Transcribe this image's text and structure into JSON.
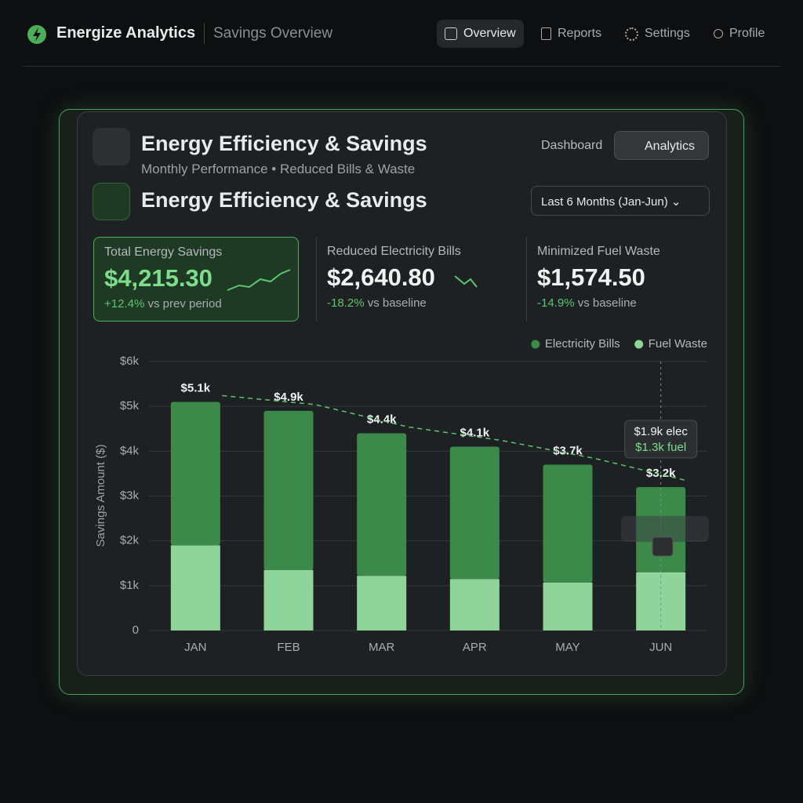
{
  "header": {
    "brand": "Energize Analytics",
    "section": "Savings Overview",
    "nav": [
      "Overview",
      "Reports",
      "Settings",
      "Profile"
    ]
  },
  "panel": {
    "title": "Energy Efficiency & Savings",
    "subtitle": "Monthly Performance • Reduced Bills & Waste",
    "tabs": [
      "Dashboard",
      "Analytics"
    ],
    "title2": "Energy Efficiency & Savings",
    "range": "Last 6 Months (Jan-Jun)"
  },
  "kpis": [
    {
      "label": "Total Energy Savings",
      "value": "$4,215.30",
      "delta": "+12.4%",
      "note": "vs prev period"
    },
    {
      "label": "Reduced Electricity Bills",
      "value": "$2,640.80",
      "delta": "-18.2%",
      "note": "vs baseline"
    },
    {
      "label": "Minimized Fuel Waste",
      "value": "$1,574.50",
      "delta": "-14.9%",
      "note": "vs baseline"
    }
  ],
  "chart_data": {
    "type": "bar",
    "stacked": true,
    "y_label": "Savings Amount ($)",
    "categories": [
      "JAN",
      "FEB",
      "MAR",
      "APR",
      "MAY",
      "JUN"
    ],
    "series": [
      {
        "name": "Electricity Bills",
        "color": "#3b8a4a",
        "values": [
          3200,
          3550,
          3180,
          2950,
          2630,
          1900
        ]
      },
      {
        "name": "Fuel Waste",
        "color": "#8fd49a",
        "values": [
          1900,
          1350,
          1220,
          1150,
          1070,
          1300
        ]
      }
    ],
    "totals": {
      "values": [
        5100,
        4900,
        4400,
        4100,
        3700,
        3200
      ],
      "value_labels": [
        "$5.1k",
        "$4.9k",
        "$4.4k",
        "$4.1k",
        "$3.7k",
        "$3.2k"
      ]
    },
    "ylim": [
      0,
      6000
    ],
    "yticks": [
      0,
      {
        "value": 1000,
        "label": "$1k"
      },
      {
        "value": 2000,
        "label": "$2k"
      },
      {
        "value": 3000,
        "label": "$3k"
      },
      {
        "value": 4000,
        "label": "$4k"
      },
      {
        "value": 5000,
        "label": "$5k"
      },
      {
        "value": 6000,
        "label": "$6k"
      }
    ],
    "grid": true,
    "legend": "top-right",
    "tooltip": [
      "$1.9k elec",
      "$1.3k fuel"
    ]
  }
}
